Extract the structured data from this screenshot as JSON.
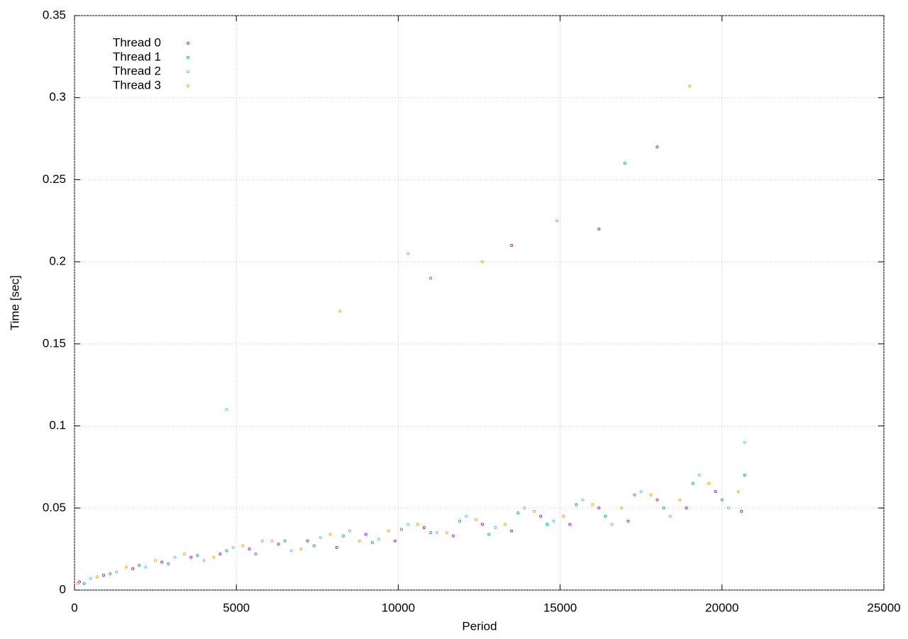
{
  "chart_data": {
    "type": "scatter",
    "x_label": "Period",
    "y_label": "Time [sec]",
    "xlim": [
      0,
      25000
    ],
    "ylim": [
      0,
      0.35
    ],
    "xticks": [
      0,
      5000,
      10000,
      15000,
      20000,
      25000
    ],
    "yticks": [
      0,
      0.05,
      0.1,
      0.15,
      0.2,
      0.25,
      0.3,
      0.35
    ],
    "grid": true,
    "legend": "upper-left",
    "series": [
      {
        "name": "Thread 0",
        "color": "#9400d3",
        "x": [
          150,
          900,
          1800,
          2700,
          3600,
          4500,
          5400,
          6300,
          7200,
          8100,
          9000,
          9900,
          10800,
          11700,
          12600,
          13500,
          14400,
          15300,
          16200,
          17100,
          18000,
          18900,
          19800,
          20600,
          16200,
          18000,
          13500
        ],
        "values": [
          0.005,
          0.009,
          0.013,
          0.017,
          0.02,
          0.022,
          0.025,
          0.028,
          0.03,
          0.026,
          0.034,
          0.03,
          0.038,
          0.033,
          0.04,
          0.036,
          0.045,
          0.04,
          0.05,
          0.042,
          0.055,
          0.05,
          0.06,
          0.048,
          0.22,
          0.27,
          0.21
        ]
      },
      {
        "name": "Thread 1",
        "color": "#009e73",
        "x": [
          300,
          1100,
          2000,
          2900,
          3800,
          4700,
          5600,
          6500,
          7400,
          8300,
          9200,
          10100,
          11000,
          11900,
          12800,
          13700,
          14600,
          15500,
          16400,
          17300,
          18200,
          19100,
          20000,
          20700,
          11000,
          17000
        ],
        "values": [
          0.004,
          0.01,
          0.015,
          0.016,
          0.021,
          0.024,
          0.022,
          0.03,
          0.027,
          0.033,
          0.029,
          0.037,
          0.035,
          0.042,
          0.034,
          0.047,
          0.04,
          0.052,
          0.045,
          0.058,
          0.05,
          0.065,
          0.055,
          0.07,
          0.19,
          0.26
        ]
      },
      {
        "name": "Thread 2",
        "color": "#56b4e9",
        "x": [
          500,
          1300,
          2200,
          3100,
          4000,
          4900,
          5800,
          6700,
          7600,
          8500,
          9400,
          10300,
          11200,
          12100,
          13000,
          13900,
          14800,
          15700,
          16600,
          17500,
          18400,
          19300,
          20200,
          20700,
          10300,
          14900,
          4700
        ],
        "values": [
          0.007,
          0.011,
          0.014,
          0.02,
          0.018,
          0.026,
          0.03,
          0.024,
          0.032,
          0.036,
          0.031,
          0.04,
          0.035,
          0.045,
          0.038,
          0.05,
          0.042,
          0.055,
          0.04,
          0.06,
          0.045,
          0.07,
          0.05,
          0.09,
          0.205,
          0.225,
          0.11
        ]
      },
      {
        "name": "Thread 3",
        "color": "#e69f00",
        "x": [
          100,
          700,
          1600,
          2500,
          3400,
          4300,
          5200,
          6100,
          7000,
          7900,
          8800,
          9700,
          10600,
          11500,
          12400,
          13300,
          14200,
          15100,
          16000,
          16900,
          17800,
          18700,
          19600,
          20500,
          19000,
          12600,
          8200
        ],
        "values": [
          0.004,
          0.008,
          0.014,
          0.018,
          0.022,
          0.02,
          0.027,
          0.03,
          0.025,
          0.034,
          0.03,
          0.036,
          0.04,
          0.035,
          0.043,
          0.04,
          0.048,
          0.045,
          0.052,
          0.05,
          0.058,
          0.055,
          0.065,
          0.06,
          0.307,
          0.2,
          0.17
        ]
      }
    ]
  }
}
